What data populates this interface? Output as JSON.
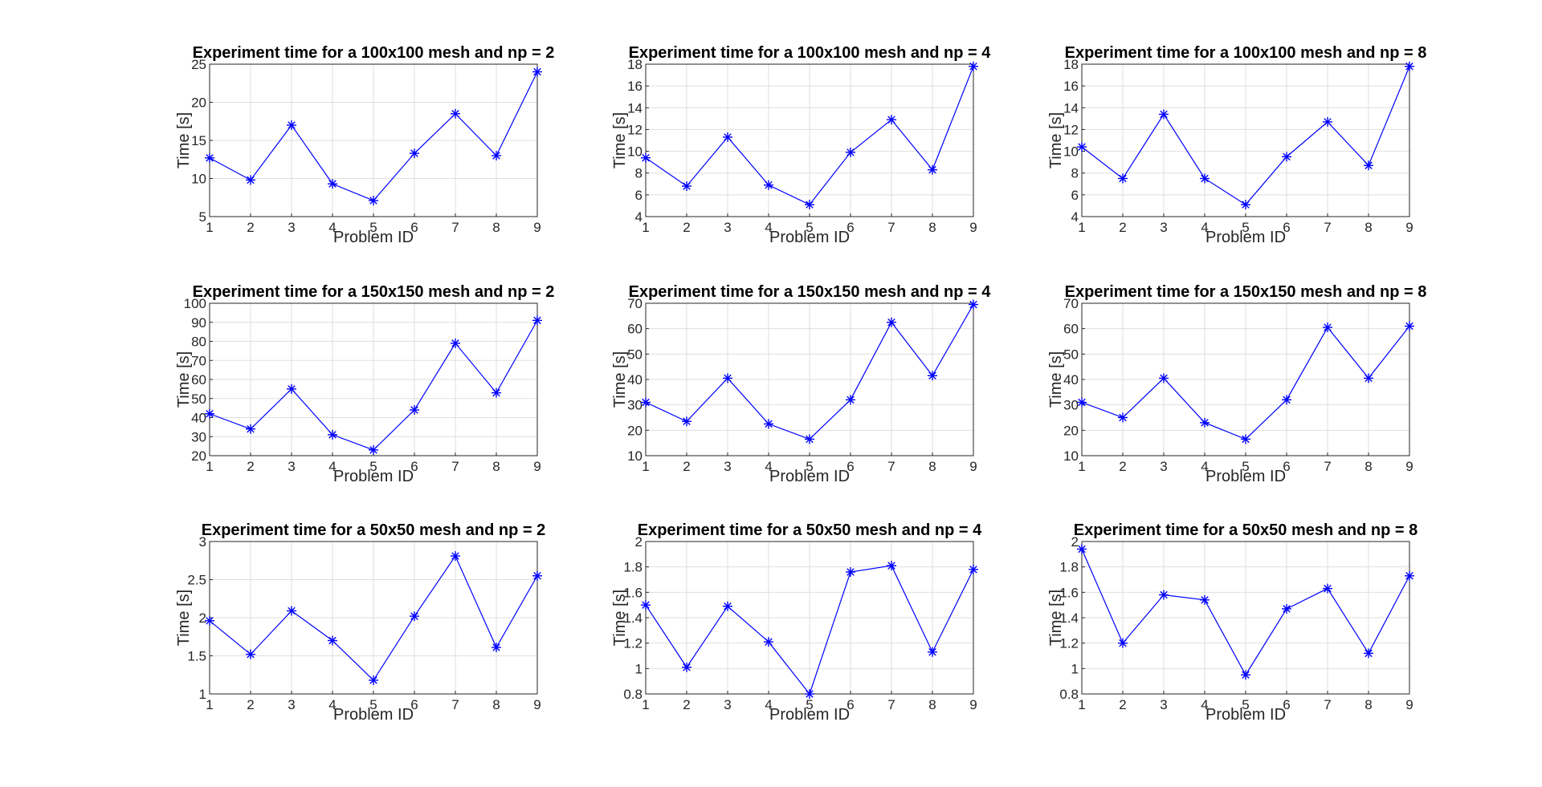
{
  "figure": {
    "background": "#ffffff",
    "series_color": "#0000ff",
    "marker": "asterisk"
  },
  "chart_data": [
    {
      "type": "line",
      "title": "Experiment time for a 100x100 mesh and np = 2",
      "xlabel": "Problem ID",
      "ylabel": "Time [s]",
      "x": [
        1,
        2,
        3,
        4,
        5,
        6,
        7,
        8,
        9
      ],
      "series": [
        {
          "values": [
            12.7,
            9.8,
            17.0,
            9.3,
            7.1,
            13.3,
            18.5,
            13.0,
            24.0
          ]
        }
      ],
      "xlim": [
        1,
        9
      ],
      "ylim": [
        5,
        25
      ],
      "xticks": [
        1,
        2,
        3,
        4,
        5,
        6,
        7,
        8,
        9
      ],
      "yticks": [
        5,
        10,
        15,
        20,
        25
      ],
      "grid": true
    },
    {
      "type": "line",
      "title": "Experiment time for a 100x100 mesh and np = 4",
      "xlabel": "Problem ID",
      "ylabel": "Time [s]",
      "x": [
        1,
        2,
        3,
        4,
        5,
        6,
        7,
        8,
        9
      ],
      "series": [
        {
          "values": [
            9.4,
            6.8,
            11.3,
            6.9,
            5.1,
            9.9,
            12.9,
            8.3,
            17.8
          ]
        }
      ],
      "xlim": [
        1,
        9
      ],
      "ylim": [
        4,
        18
      ],
      "xticks": [
        1,
        2,
        3,
        4,
        5,
        6,
        7,
        8,
        9
      ],
      "yticks": [
        4,
        6,
        8,
        10,
        12,
        14,
        16,
        18
      ],
      "grid": true
    },
    {
      "type": "line",
      "title": "Experiment time for a 100x100 mesh and np = 8",
      "xlabel": "Problem ID",
      "ylabel": "Time [s]",
      "x": [
        1,
        2,
        3,
        4,
        5,
        6,
        7,
        8,
        9
      ],
      "series": [
        {
          "values": [
            10.4,
            7.5,
            13.4,
            7.5,
            5.1,
            9.5,
            12.7,
            8.7,
            17.8
          ]
        }
      ],
      "xlim": [
        1,
        9
      ],
      "ylim": [
        4,
        18
      ],
      "xticks": [
        1,
        2,
        3,
        4,
        5,
        6,
        7,
        8,
        9
      ],
      "yticks": [
        4,
        6,
        8,
        10,
        12,
        14,
        16,
        18
      ],
      "grid": true
    },
    {
      "type": "line",
      "title": "Experiment time for a 150x150 mesh and np = 2",
      "xlabel": "Problem ID",
      "ylabel": "Time [s]",
      "x": [
        1,
        2,
        3,
        4,
        5,
        6,
        7,
        8,
        9
      ],
      "series": [
        {
          "values": [
            42,
            34,
            55,
            31,
            23,
            44,
            79,
            53,
            91
          ]
        }
      ],
      "xlim": [
        1,
        9
      ],
      "ylim": [
        20,
        100
      ],
      "xticks": [
        1,
        2,
        3,
        4,
        5,
        6,
        7,
        8,
        9
      ],
      "yticks": [
        20,
        30,
        40,
        50,
        60,
        70,
        80,
        90,
        100
      ],
      "grid": true
    },
    {
      "type": "line",
      "title": "Experiment time for a 150x150 mesh and np = 4",
      "xlabel": "Problem ID",
      "ylabel": "Time [s]",
      "x": [
        1,
        2,
        3,
        4,
        5,
        6,
        7,
        8,
        9
      ],
      "series": [
        {
          "values": [
            31,
            23.5,
            40.5,
            22.5,
            16.5,
            32,
            62.5,
            41.5,
            69.5
          ]
        }
      ],
      "xlim": [
        1,
        9
      ],
      "ylim": [
        10,
        70
      ],
      "xticks": [
        1,
        2,
        3,
        4,
        5,
        6,
        7,
        8,
        9
      ],
      "yticks": [
        10,
        20,
        30,
        40,
        50,
        60,
        70
      ],
      "grid": true
    },
    {
      "type": "line",
      "title": "Experiment time for a 150x150 mesh and np = 8",
      "xlabel": "Problem ID",
      "ylabel": "Time [s]",
      "x": [
        1,
        2,
        3,
        4,
        5,
        6,
        7,
        8,
        9
      ],
      "series": [
        {
          "values": [
            31,
            25,
            40.5,
            23,
            16.5,
            32,
            60.5,
            40.5,
            61
          ]
        }
      ],
      "xlim": [
        1,
        9
      ],
      "ylim": [
        10,
        70
      ],
      "xticks": [
        1,
        2,
        3,
        4,
        5,
        6,
        7,
        8,
        9
      ],
      "yticks": [
        10,
        20,
        30,
        40,
        50,
        60,
        70
      ],
      "grid": true
    },
    {
      "type": "line",
      "title": "Experiment time for a 50x50 mesh and np = 2",
      "xlabel": "Problem ID",
      "ylabel": "Time [s]",
      "x": [
        1,
        2,
        3,
        4,
        5,
        6,
        7,
        8,
        9
      ],
      "series": [
        {
          "values": [
            1.96,
            1.52,
            2.09,
            1.7,
            1.18,
            2.02,
            2.81,
            1.61,
            2.55
          ]
        }
      ],
      "xlim": [
        1,
        9
      ],
      "ylim": [
        1,
        3
      ],
      "xticks": [
        1,
        2,
        3,
        4,
        5,
        6,
        7,
        8,
        9
      ],
      "yticks": [
        1,
        1.5,
        2,
        2.5,
        3
      ],
      "grid": true
    },
    {
      "type": "line",
      "title": "Experiment time for a 50x50 mesh and np = 4",
      "xlabel": "Problem ID",
      "ylabel": "Time [s]",
      "x": [
        1,
        2,
        3,
        4,
        5,
        6,
        7,
        8,
        9
      ],
      "series": [
        {
          "values": [
            1.5,
            1.01,
            1.49,
            1.21,
            0.8,
            1.76,
            1.81,
            1.13,
            1.78
          ]
        }
      ],
      "xlim": [
        1,
        9
      ],
      "ylim": [
        0.8,
        2
      ],
      "xticks": [
        1,
        2,
        3,
        4,
        5,
        6,
        7,
        8,
        9
      ],
      "yticks": [
        0.8,
        1,
        1.2,
        1.4,
        1.6,
        1.8,
        2
      ],
      "grid": true
    },
    {
      "type": "line",
      "title": "Experiment time for a 50x50 mesh and np = 8",
      "xlabel": "Problem ID",
      "ylabel": "Time [s]",
      "x": [
        1,
        2,
        3,
        4,
        5,
        6,
        7,
        8,
        9
      ],
      "series": [
        {
          "values": [
            1.94,
            1.2,
            1.58,
            1.54,
            0.95,
            1.47,
            1.63,
            1.12,
            1.73
          ]
        }
      ],
      "xlim": [
        1,
        9
      ],
      "ylim": [
        0.8,
        2
      ],
      "xticks": [
        1,
        2,
        3,
        4,
        5,
        6,
        7,
        8,
        9
      ],
      "yticks": [
        0.8,
        1,
        1.2,
        1.4,
        1.6,
        1.8,
        2
      ],
      "grid": true
    }
  ]
}
